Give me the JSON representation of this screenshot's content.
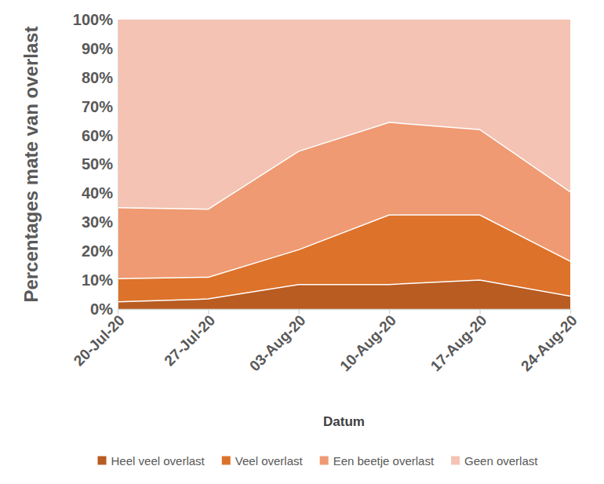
{
  "chart_data": {
    "type": "area",
    "stacked": true,
    "y_label": "Percentages mate van overlast",
    "x_label": "Datum",
    "categories": [
      "20-Jul-20",
      "27-Jul-20",
      "03-Aug-20",
      "10-Aug-20",
      "17-Aug-20",
      "24-Aug-20"
    ],
    "series": [
      {
        "name": "Heel veel overlast",
        "color": "#b85c22",
        "values": [
          2.5,
          3.5,
          8.5,
          8.5,
          10,
          4.5
        ]
      },
      {
        "name": "Veel overlast",
        "color": "#dd722b",
        "values": [
          8,
          7.5,
          12,
          24,
          22.5,
          12
        ]
      },
      {
        "name": "Een beetje overlast",
        "color": "#ef9a72",
        "values": [
          24.5,
          23.5,
          34,
          32,
          29.5,
          24
        ]
      },
      {
        "name": "Geen overlast",
        "color": "#f4c3b3",
        "values": [
          65,
          65.5,
          45.5,
          35.5,
          38,
          59.5
        ]
      }
    ],
    "ylim": [
      0,
      100
    ],
    "yticks": [
      {
        "value": 0,
        "label": "0%"
      },
      {
        "value": 10,
        "label": "10%"
      },
      {
        "value": 20,
        "label": "20%"
      },
      {
        "value": 30,
        "label": "30%"
      },
      {
        "value": 40,
        "label": "40%"
      },
      {
        "value": 50,
        "label": "50%"
      },
      {
        "value": 60,
        "label": "60%"
      },
      {
        "value": 70,
        "label": "70%"
      },
      {
        "value": 80,
        "label": "80%"
      },
      {
        "value": 90,
        "label": "90%"
      },
      {
        "value": 100,
        "label": "100%"
      }
    ],
    "grid": false,
    "legend": "bottom"
  }
}
